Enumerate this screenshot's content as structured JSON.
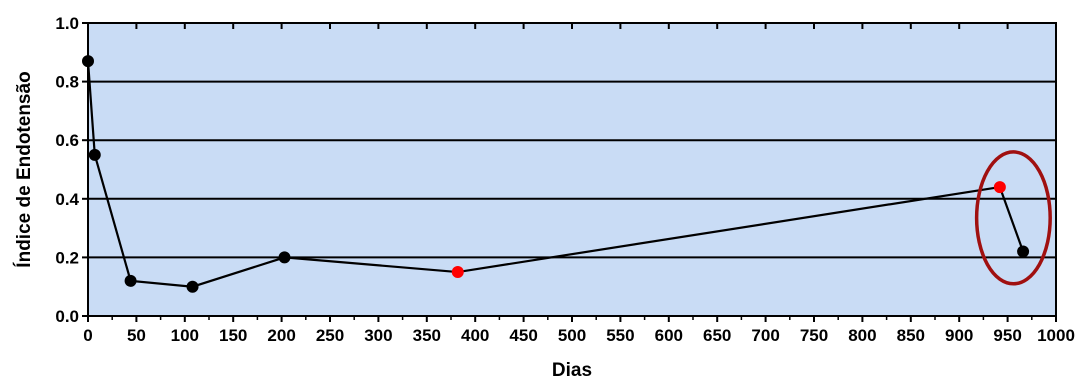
{
  "chart_data": {
    "type": "line",
    "title": "",
    "xlabel": "Dias",
    "ylabel": "Índice de Endotensão",
    "xlim": [
      0,
      1000
    ],
    "ylim": [
      0,
      1.0
    ],
    "xticks": [
      0,
      50,
      100,
      150,
      200,
      250,
      300,
      350,
      400,
      450,
      500,
      550,
      600,
      650,
      700,
      750,
      800,
      850,
      900,
      950,
      1000
    ],
    "yticks": [
      0.0,
      0.2,
      0.4,
      0.6,
      0.8,
      1.0
    ],
    "ytick_labels": [
      "0.0",
      "0.2",
      "0.4",
      "0.6",
      "0.8",
      "1.0"
    ],
    "grid": "horizontal",
    "plot_background": "#c9dcf5",
    "line_color": "#000000",
    "series": [
      {
        "points": [
          {
            "x": 0,
            "y": 0.87,
            "color": "#000000"
          },
          {
            "x": 7,
            "y": 0.55,
            "color": "#000000"
          },
          {
            "x": 44,
            "y": 0.12,
            "color": "#000000"
          },
          {
            "x": 108,
            "y": 0.1,
            "color": "#000000"
          },
          {
            "x": 203,
            "y": 0.2,
            "color": "#000000"
          },
          {
            "x": 382,
            "y": 0.15,
            "color": "#ff0000"
          },
          {
            "x": 942,
            "y": 0.44,
            "color": "#ff0000"
          },
          {
            "x": 966,
            "y": 0.22,
            "color": "#000000"
          }
        ]
      }
    ],
    "annotations": [
      {
        "type": "ellipse",
        "center": {
          "x": 956,
          "y": 0.335
        },
        "radius_x": 38,
        "radius_y": 0.225,
        "color": "#a01010"
      }
    ]
  }
}
